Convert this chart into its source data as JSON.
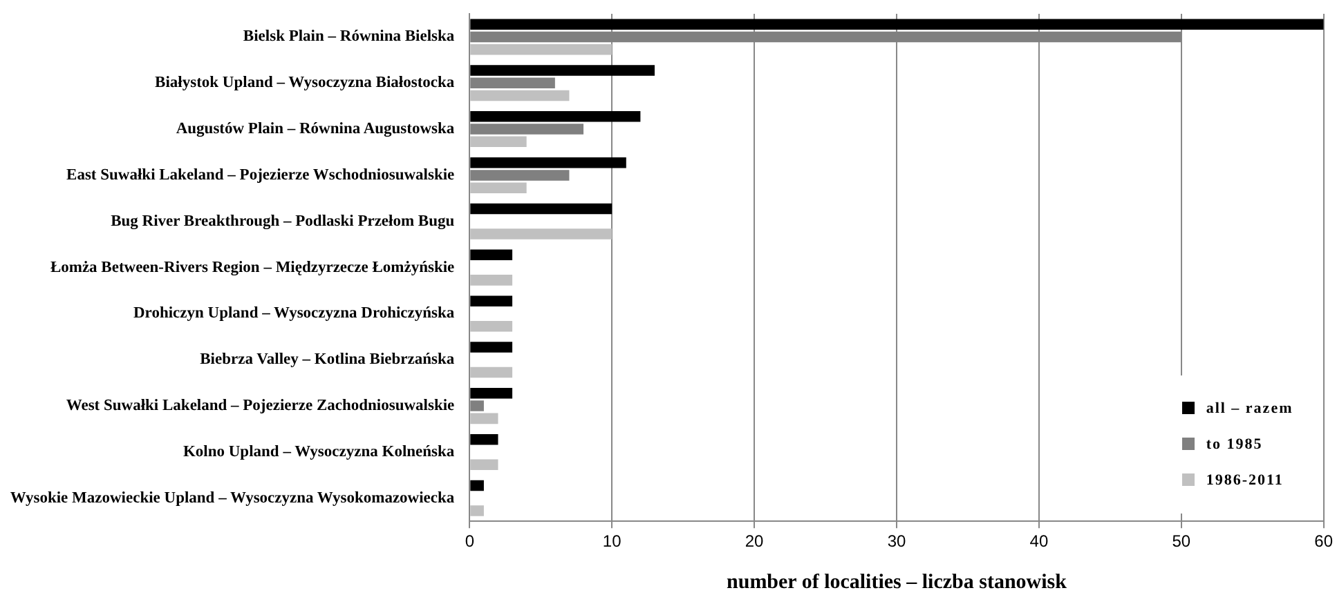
{
  "chart_data": {
    "type": "bar",
    "orientation": "horizontal",
    "xlabel": "number of localities – liczba stanowisk",
    "categories": [
      "Bielsk Plain – Równina Bielska",
      "Białystok Upland – Wysoczyzna Białostocka",
      "Augustów Plain – Równina Augustowska",
      "East Suwałki Lakeland – Pojezierze Wschodniosuwalskie",
      "Bug River Breakthrough – Podlaski Przełom Bugu",
      "Łomża Between-Rivers Region – Międzyrzecze Łomżyńskie",
      "Drohiczyn Upland – Wysoczyzna Drohiczyńska",
      "Biebrza Valley – Kotlina Biebrzańska",
      "West Suwałki Lakeland – Pojezierze Zachodniosuwalskie",
      "Kolno Upland – Wysoczyzna Kolneńska",
      "Wysokie Mazowieckie Upland – Wysoczyzna Wysokomazowiecka"
    ],
    "series": [
      {
        "name": "all – razem",
        "color": "#000000",
        "values": [
          60,
          13,
          12,
          11,
          10,
          3,
          3,
          3,
          3,
          2,
          1
        ]
      },
      {
        "name": "to 1985",
        "color": "#808080",
        "values": [
          50,
          6,
          8,
          7,
          0,
          0,
          0,
          0,
          1,
          0,
          0
        ]
      },
      {
        "name": "1986-2011",
        "color": "#c0c0c0",
        "values": [
          10,
          7,
          4,
          4,
          10,
          3,
          3,
          3,
          2,
          2,
          1
        ]
      }
    ],
    "xlim": [
      0,
      60
    ],
    "xticks": [
      0,
      10,
      20,
      30,
      40,
      50,
      60
    ],
    "grid": "x",
    "legend": "bottom right"
  }
}
